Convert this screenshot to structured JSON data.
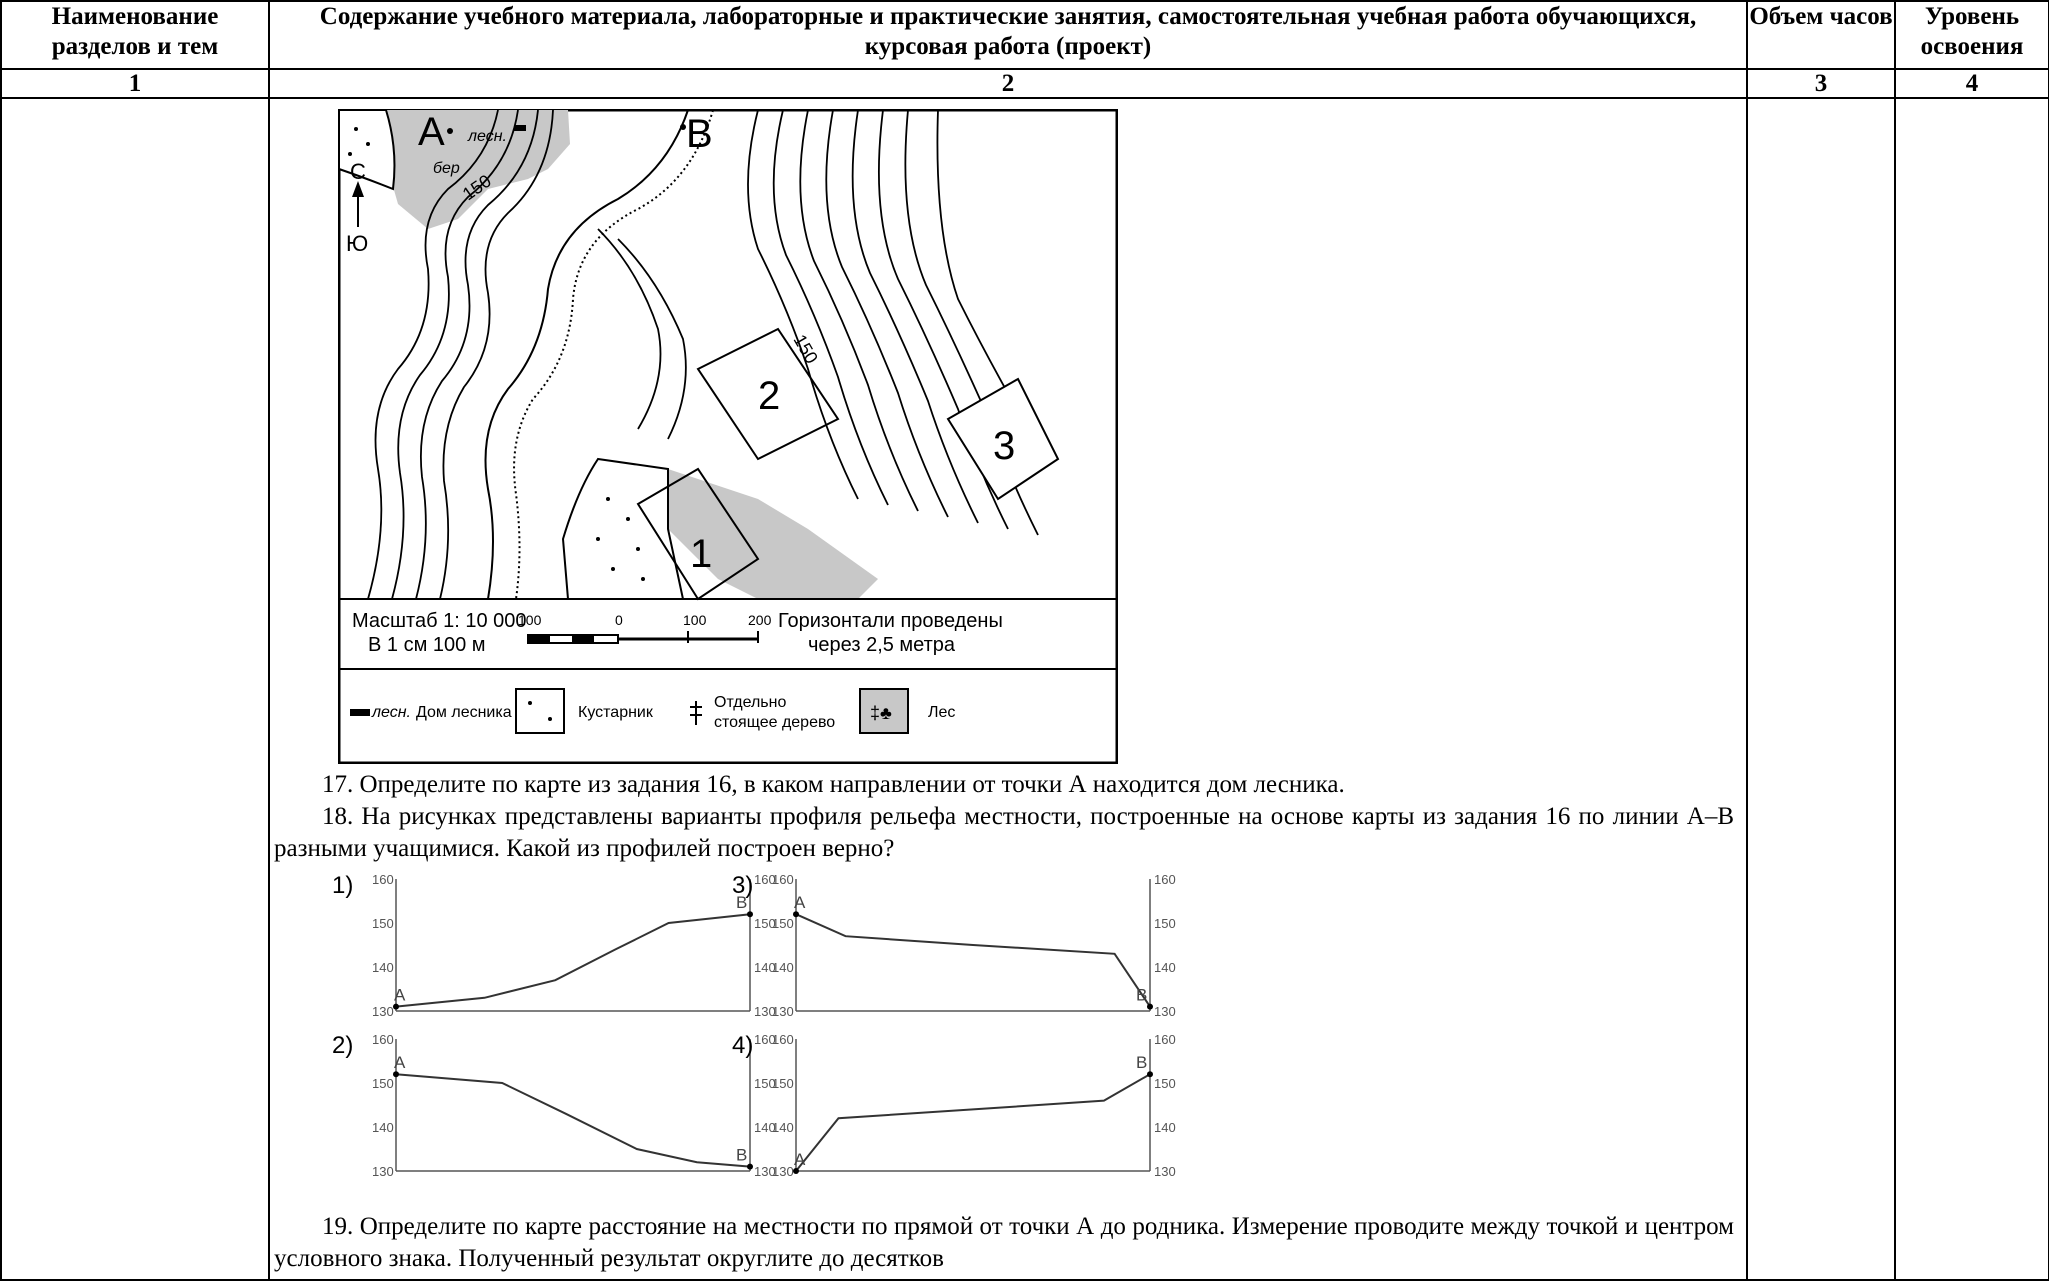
{
  "table": {
    "headers": [
      "Наименование разделов и тем",
      "Содержание учебного материала, лабораторные и практические занятия, самостоятельная учебная работа обучающихся, курсовая работа (проект)",
      "Объем часов",
      "Уровень освоения"
    ],
    "numbers": [
      "1",
      "2",
      "3",
      "4"
    ]
  },
  "map": {
    "point_a": "A",
    "point_b": "B",
    "forester_label": "лесн.",
    "birch_label": "бер",
    "north": "С",
    "south": "Ю",
    "contour_label_1": "150",
    "contour_label_2": "150",
    "area_1": "1",
    "area_2": "2",
    "area_3": "3",
    "scale_title": "Масштаб   1: 10 000",
    "scale_sub": "В 1 см 100 м",
    "scale_ticks": [
      "100",
      "0",
      "100",
      "200"
    ],
    "contour_note_1": "Горизонтали проведены",
    "contour_note_2": "через  2,5 метра",
    "legend": {
      "forester_house_symbol": "лесн.",
      "forester_house": "Дом лесника",
      "shrub": "Кустарник",
      "lone_tree_1": "Отдельно",
      "lone_tree_2": "стоящее дерево",
      "forest": "Лес"
    }
  },
  "questions": {
    "q17": "17. Определите по карте из задания 16, в каком направлении от точки А находится дом лесника.",
    "q18": "18. На рисунках представлены варианты профиля рельефа местности, построенные на основе карты из задания 16 по линии А–В разными учащимися. Какой из профилей построен верно?",
    "q19": "19. Определите по карте расстояние на местности по прямой от точки А до родника. Измерение проводите между точкой и центром условного знака. Полученный результат округлите до десятков"
  },
  "profiles": {
    "y_ticks": [
      "160",
      "150",
      "140",
      "130"
    ],
    "y_range": [
      130,
      160
    ],
    "point_a": "A",
    "point_b": "B",
    "items": [
      {
        "label": "1)",
        "points": [
          [
            0,
            131
          ],
          [
            0.25,
            133
          ],
          [
            0.45,
            137
          ],
          [
            0.62,
            144
          ],
          [
            0.77,
            150
          ],
          [
            1,
            152
          ]
        ]
      },
      {
        "label": "2)",
        "points": [
          [
            0,
            152
          ],
          [
            0.3,
            150
          ],
          [
            0.48,
            143
          ],
          [
            0.68,
            135
          ],
          [
            0.85,
            132
          ],
          [
            1,
            131
          ]
        ]
      },
      {
        "label": "3)",
        "points": [
          [
            0,
            152
          ],
          [
            0.14,
            147
          ],
          [
            0.5,
            145
          ],
          [
            0.9,
            143
          ],
          [
            1,
            131
          ]
        ]
      },
      {
        "label": "4)",
        "points": [
          [
            0,
            130
          ],
          [
            0.12,
            142
          ],
          [
            0.5,
            144
          ],
          [
            0.87,
            146
          ],
          [
            1,
            152
          ]
        ]
      }
    ]
  }
}
